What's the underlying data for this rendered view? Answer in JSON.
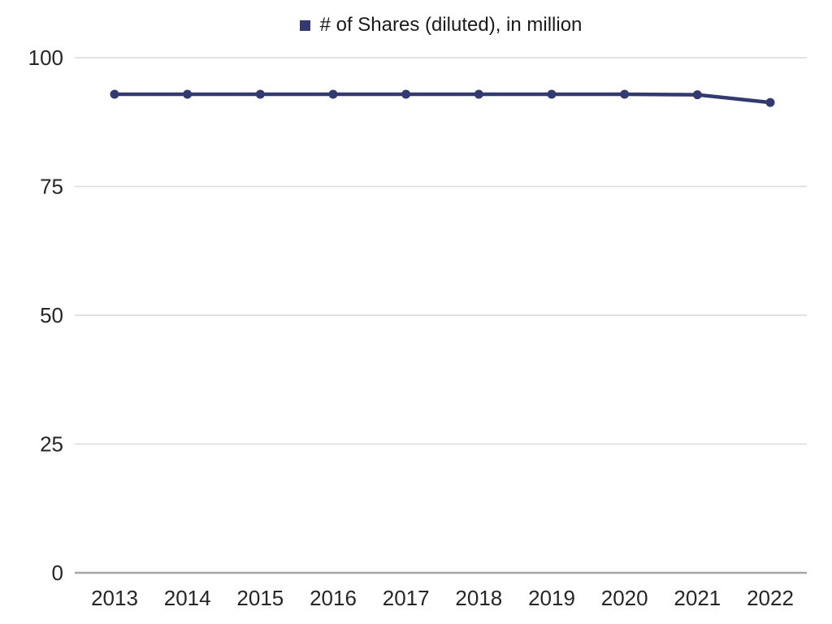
{
  "chart_data": {
    "type": "line",
    "title": "",
    "legend_label": "# of Shares (diluted), in million",
    "legend_position": "top-center",
    "categories": [
      "2013",
      "2014",
      "2015",
      "2016",
      "2017",
      "2018",
      "2019",
      "2020",
      "2021",
      "2022"
    ],
    "series": [
      {
        "name": "# of Shares (diluted), in million",
        "values": [
          92.9,
          92.9,
          92.9,
          92.9,
          92.9,
          92.9,
          92.9,
          92.9,
          92.8,
          91.3
        ]
      }
    ],
    "xlabel": "",
    "ylabel": "",
    "ylim": [
      0,
      100
    ],
    "yticks": [
      0,
      25,
      50,
      75,
      100
    ],
    "grid": true,
    "colors": {
      "line": "#333a70",
      "marker": "#333a70",
      "grid": "#d9d9d9",
      "axis": "#a6a6a6",
      "tick_text": "#262626",
      "legend_text": "#1a1a1a",
      "background": "#ffffff"
    }
  }
}
